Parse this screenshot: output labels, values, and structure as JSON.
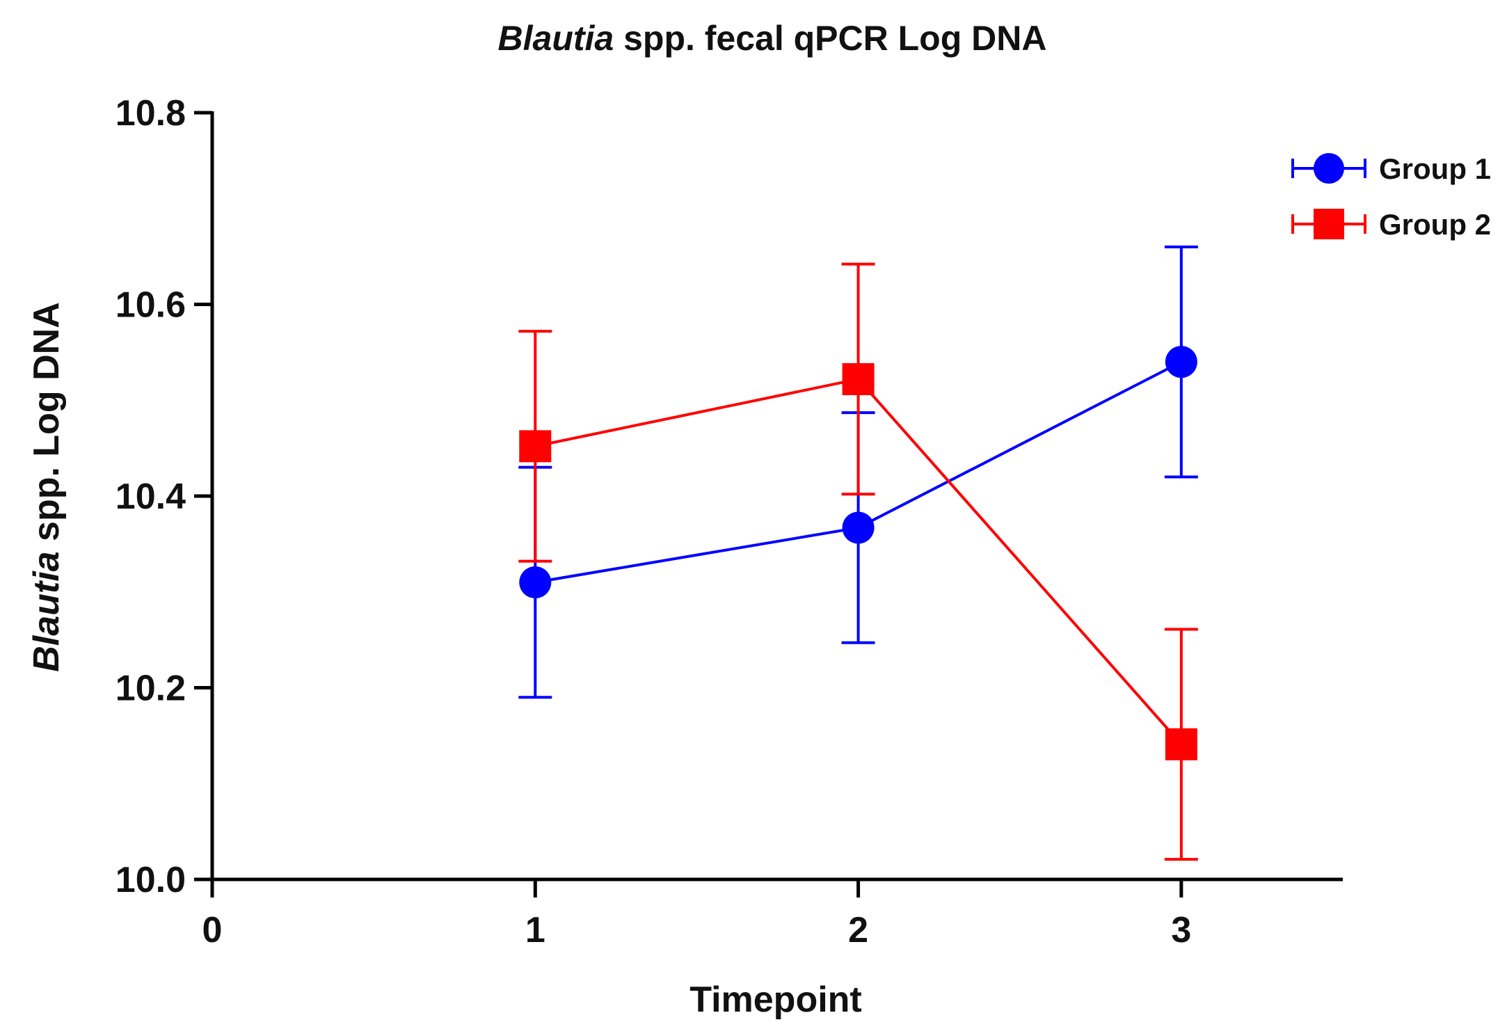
{
  "chart_data": {
    "type": "line",
    "title": {
      "italic": "Blautia",
      "rest": " spp. fecal qPCR Log DNA"
    },
    "xlabel": "Timepoint",
    "ylabel": {
      "italic": "Blautia",
      "rest": " spp. Log DNA"
    },
    "xlim": [
      0,
      3.5
    ],
    "ylim": [
      10.0,
      10.8
    ],
    "xticks": [
      "0",
      "1",
      "2",
      "3"
    ],
    "yticks": [
      "10.0",
      "10.2",
      "10.4",
      "10.6",
      "10.8"
    ],
    "grid": false,
    "legend_position": "top-right",
    "series": [
      {
        "name": "Group 1",
        "color": "#0000ff",
        "marker": "circle",
        "x": [
          1,
          2,
          3
        ],
        "y": [
          10.31,
          10.367,
          10.54
        ],
        "err": [
          0.12,
          0.12,
          0.12
        ]
      },
      {
        "name": "Group 2",
        "color": "#ff0000",
        "marker": "square",
        "x": [
          1,
          2,
          3
        ],
        "y": [
          10.452,
          10.522,
          10.141
        ],
        "err": [
          0.12,
          0.12,
          0.12
        ]
      }
    ]
  }
}
